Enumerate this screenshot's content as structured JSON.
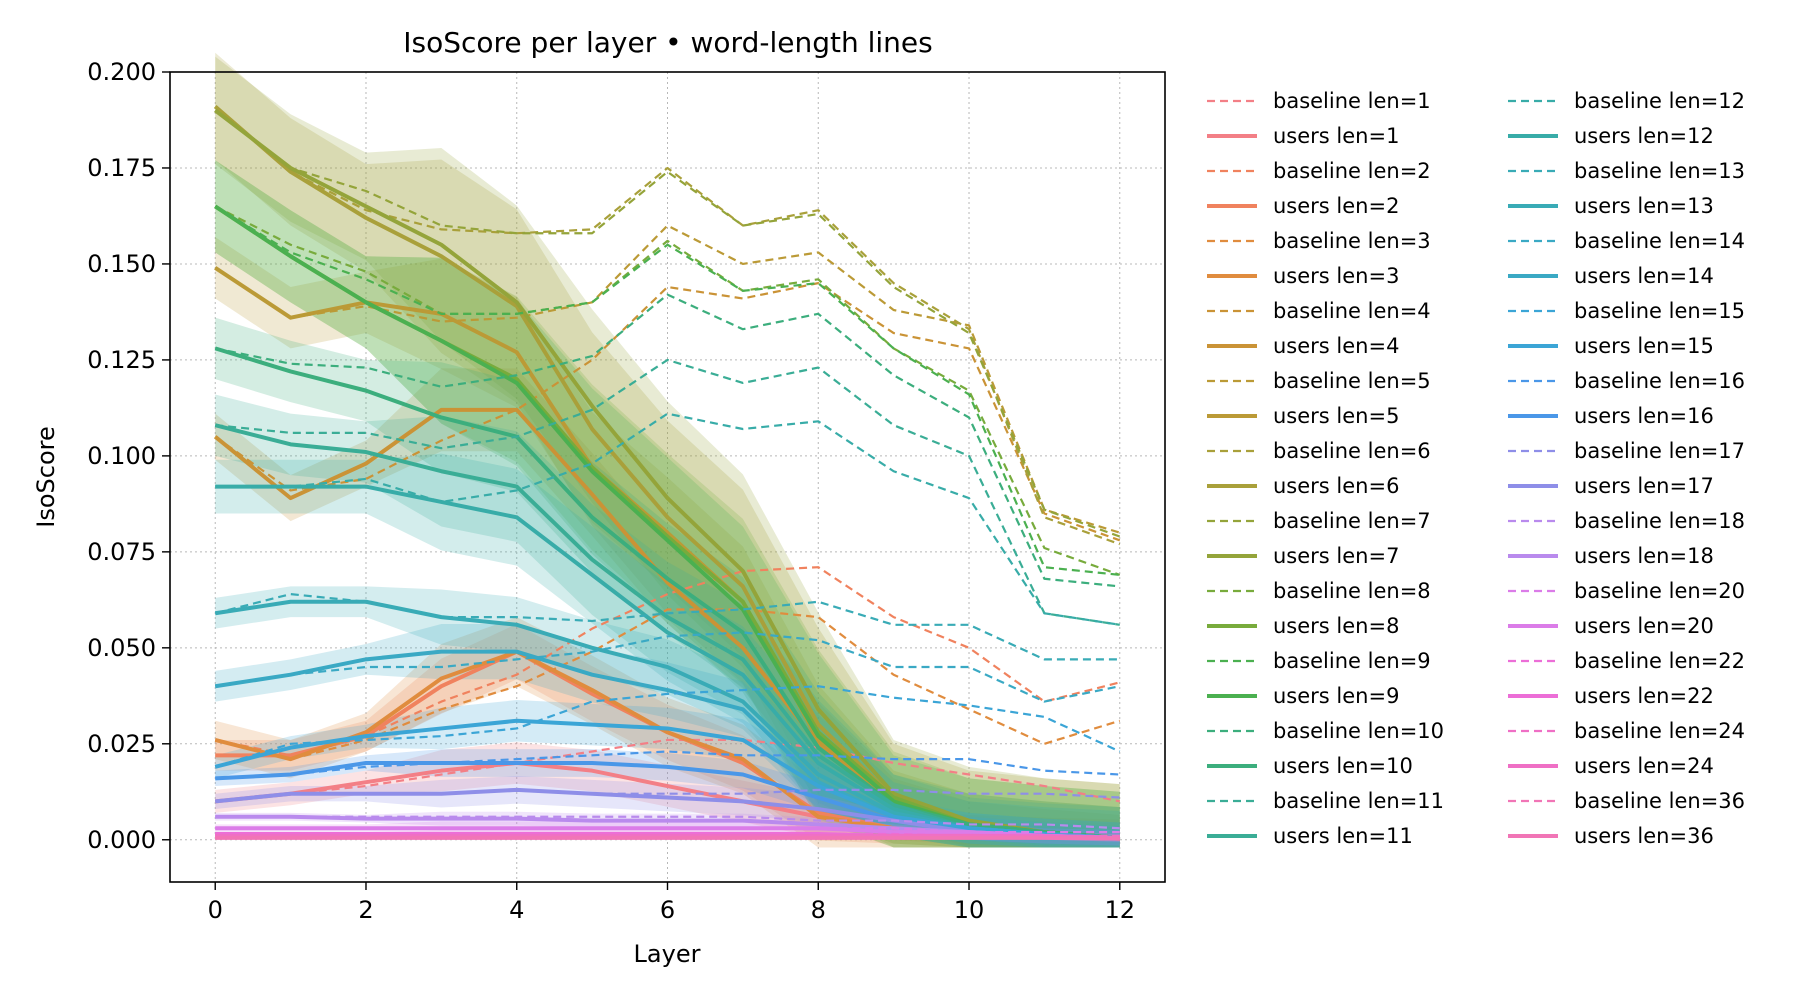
{
  "chart_data": {
    "type": "line",
    "title": "IsoScore per layer • word-length lines",
    "xlabel": "Layer",
    "ylabel": "IsoScore",
    "xlim": [
      -0.6,
      12.6
    ],
    "ylim": [
      -0.011,
      0.2
    ],
    "xticks": [
      0,
      2,
      4,
      6,
      8,
      10,
      12
    ],
    "xtick_labels": [
      "0",
      "2",
      "4",
      "6",
      "8",
      "10",
      "12"
    ],
    "yticks": [
      0.0,
      0.025,
      0.05,
      0.075,
      0.1,
      0.125,
      0.15,
      0.175,
      0.2
    ],
    "ytick_labels": [
      "0.000",
      "0.025",
      "0.050",
      "0.075",
      "0.100",
      "0.125",
      "0.150",
      "0.175",
      "0.200"
    ],
    "grid": true,
    "legend_position": "outside-right",
    "x": [
      0,
      1,
      2,
      3,
      4,
      5,
      6,
      7,
      8,
      9,
      10,
      11,
      12
    ],
    "series": [
      {
        "name": "baseline len=1",
        "style": "dashed",
        "color": "#f37f86",
        "values": [
          0.01,
          0.012,
          0.014,
          0.017,
          0.02,
          0.023,
          0.026,
          0.026,
          0.024,
          0.02,
          0.017,
          0.014,
          0.01
        ]
      },
      {
        "name": "users len=1",
        "style": "solid",
        "color": "#f37f86",
        "band": 0.003,
        "values": [
          0.01,
          0.012,
          0.015,
          0.018,
          0.02,
          0.018,
          0.014,
          0.01,
          0.006,
          0.003,
          0.0015,
          0.0008,
          0.0003
        ]
      },
      {
        "name": "baseline len=2",
        "style": "dashed",
        "color": "#f0825e",
        "values": [
          0.026,
          0.022,
          0.027,
          0.036,
          0.043,
          0.055,
          0.064,
          0.07,
          0.071,
          0.058,
          0.05,
          0.036,
          0.041
        ]
      },
      {
        "name": "users len=2",
        "style": "solid",
        "color": "#f0825e",
        "band": 0.004,
        "values": [
          0.022,
          0.022,
          0.027,
          0.04,
          0.049,
          0.038,
          0.028,
          0.02,
          0.007,
          0.003,
          0.0015,
          0.0008,
          0.0003
        ]
      },
      {
        "name": "baseline len=3",
        "style": "dashed",
        "color": "#e08c3e",
        "values": [
          0.026,
          0.021,
          0.026,
          0.034,
          0.04,
          0.049,
          0.06,
          0.06,
          0.058,
          0.043,
          0.034,
          0.025,
          0.031
        ]
      },
      {
        "name": "users len=3",
        "style": "solid",
        "color": "#e08c3e",
        "band": 0.005,
        "values": [
          0.026,
          0.021,
          0.028,
          0.042,
          0.049,
          0.039,
          0.028,
          0.021,
          0.006,
          0.003,
          0.0015,
          0.0008,
          0.0003
        ]
      },
      {
        "name": "baseline len=4",
        "style": "dashed",
        "color": "#ca9336",
        "values": [
          0.105,
          0.091,
          0.094,
          0.104,
          0.112,
          0.125,
          0.144,
          0.141,
          0.145,
          0.132,
          0.128,
          0.085,
          0.078
        ]
      },
      {
        "name": "users len=4",
        "style": "solid",
        "color": "#ca9336",
        "band": 0.006,
        "values": [
          0.105,
          0.089,
          0.098,
          0.112,
          0.112,
          0.09,
          0.067,
          0.05,
          0.025,
          0.01,
          0.004,
          0.002,
          0.0005
        ]
      },
      {
        "name": "baseline len=5",
        "style": "dashed",
        "color": "#bb9a36",
        "values": [
          0.149,
          0.136,
          0.139,
          0.135,
          0.136,
          0.14,
          0.16,
          0.15,
          0.153,
          0.138,
          0.134,
          0.086,
          0.08
        ]
      },
      {
        "name": "users len=5",
        "style": "solid",
        "color": "#bb9a36",
        "band": 0.008,
        "values": [
          0.149,
          0.136,
          0.14,
          0.137,
          0.127,
          0.097,
          0.08,
          0.062,
          0.026,
          0.01,
          0.004,
          0.002,
          0.0005
        ]
      },
      {
        "name": "baseline len=6",
        "style": "dashed",
        "color": "#a9a03a",
        "values": [
          0.191,
          0.174,
          0.164,
          0.159,
          0.158,
          0.159,
          0.175,
          0.16,
          0.164,
          0.145,
          0.133,
          0.084,
          0.077
        ]
      },
      {
        "name": "users len=6",
        "style": "solid",
        "color": "#a9a03a",
        "band": 0.014,
        "values": [
          0.191,
          0.174,
          0.162,
          0.152,
          0.139,
          0.107,
          0.084,
          0.066,
          0.03,
          0.011,
          0.004,
          0.002,
          0.0005
        ]
      },
      {
        "name": "baseline len=7",
        "style": "dashed",
        "color": "#94a43a",
        "values": [
          0.19,
          0.175,
          0.169,
          0.16,
          0.158,
          0.158,
          0.174,
          0.16,
          0.163,
          0.144,
          0.132,
          0.086,
          0.079
        ]
      },
      {
        "name": "users len=7",
        "style": "solid",
        "color": "#94a43a",
        "band": 0.014,
        "values": [
          0.19,
          0.175,
          0.165,
          0.155,
          0.14,
          0.113,
          0.089,
          0.07,
          0.034,
          0.012,
          0.005,
          0.002,
          0.0005
        ]
      },
      {
        "name": "baseline len=8",
        "style": "dashed",
        "color": "#78ab3c",
        "values": [
          0.165,
          0.155,
          0.148,
          0.137,
          0.137,
          0.14,
          0.156,
          0.143,
          0.146,
          0.128,
          0.117,
          0.076,
          0.069
        ]
      },
      {
        "name": "users len=8",
        "style": "solid",
        "color": "#78ab3c",
        "band": 0.012,
        "values": [
          0.165,
          0.152,
          0.14,
          0.13,
          0.12,
          0.097,
          0.079,
          0.062,
          0.028,
          0.011,
          0.004,
          0.002,
          0.0005
        ]
      },
      {
        "name": "baseline len=9",
        "style": "dashed",
        "color": "#4bb050",
        "values": [
          0.165,
          0.153,
          0.146,
          0.137,
          0.137,
          0.14,
          0.155,
          0.143,
          0.145,
          0.128,
          0.116,
          0.071,
          0.069
        ]
      },
      {
        "name": "users len=9",
        "style": "solid",
        "color": "#4bb050",
        "band": 0.012,
        "values": [
          0.165,
          0.152,
          0.14,
          0.13,
          0.119,
          0.096,
          0.078,
          0.06,
          0.027,
          0.01,
          0.004,
          0.002,
          0.0005
        ]
      },
      {
        "name": "baseline len=10",
        "style": "dashed",
        "color": "#3cae7d",
        "values": [
          0.128,
          0.124,
          0.123,
          0.118,
          0.121,
          0.126,
          0.142,
          0.133,
          0.137,
          0.121,
          0.11,
          0.068,
          0.066
        ]
      },
      {
        "name": "users len=10",
        "style": "solid",
        "color": "#3cae7d",
        "band": 0.008,
        "values": [
          0.128,
          0.122,
          0.117,
          0.11,
          0.105,
          0.084,
          0.068,
          0.054,
          0.024,
          0.009,
          0.004,
          0.002,
          0.0005
        ]
      },
      {
        "name": "baseline len=11",
        "style": "dashed",
        "color": "#3aad96",
        "values": [
          0.108,
          0.106,
          0.106,
          0.102,
          0.105,
          0.112,
          0.125,
          0.119,
          0.123,
          0.108,
          0.1,
          0.059,
          0.056
        ]
      },
      {
        "name": "users len=11",
        "style": "solid",
        "color": "#3aad96",
        "band": 0.008,
        "values": [
          0.108,
          0.103,
          0.101,
          0.096,
          0.092,
          0.073,
          0.058,
          0.047,
          0.022,
          0.009,
          0.003,
          0.0015,
          0.0005
        ]
      },
      {
        "name": "baseline len=12",
        "style": "dashed",
        "color": "#38aca8",
        "values": [
          0.092,
          0.092,
          0.094,
          0.088,
          0.091,
          0.098,
          0.111,
          0.107,
          0.109,
          0.096,
          0.089,
          0.059,
          0.056
        ]
      },
      {
        "name": "users len=12",
        "style": "solid",
        "color": "#38aca8",
        "band": 0.007,
        "values": [
          0.092,
          0.092,
          0.092,
          0.088,
          0.084,
          0.069,
          0.054,
          0.043,
          0.02,
          0.008,
          0.003,
          0.0015,
          0.0005
        ]
      },
      {
        "name": "baseline len=13",
        "style": "dashed",
        "color": "#39abb6",
        "values": [
          0.059,
          0.064,
          0.062,
          0.058,
          0.058,
          0.057,
          0.059,
          0.06,
          0.062,
          0.056,
          0.056,
          0.047,
          0.047
        ]
      },
      {
        "name": "users len=13",
        "style": "solid",
        "color": "#39abb6",
        "band": 0.004,
        "values": [
          0.059,
          0.062,
          0.062,
          0.058,
          0.056,
          0.05,
          0.045,
          0.036,
          0.017,
          0.007,
          0.003,
          0.0015,
          0.0005
        ]
      },
      {
        "name": "baseline len=14",
        "style": "dashed",
        "color": "#3aa9c4",
        "values": [
          0.04,
          0.043,
          0.045,
          0.045,
          0.047,
          0.049,
          0.053,
          0.054,
          0.052,
          0.045,
          0.045,
          0.036,
          0.04
        ]
      },
      {
        "name": "users len=14",
        "style": "solid",
        "color": "#3aa9c4",
        "band": 0.004,
        "values": [
          0.04,
          0.043,
          0.047,
          0.049,
          0.049,
          0.043,
          0.039,
          0.034,
          0.015,
          0.006,
          0.003,
          0.0015,
          0.0005
        ]
      },
      {
        "name": "baseline len=15",
        "style": "dashed",
        "color": "#3ba5d6",
        "values": [
          0.019,
          0.025,
          0.026,
          0.027,
          0.029,
          0.036,
          0.038,
          0.039,
          0.04,
          0.037,
          0.035,
          0.032,
          0.023
        ]
      },
      {
        "name": "users len=15",
        "style": "solid",
        "color": "#3ba5d6",
        "band": 0.003,
        "values": [
          0.019,
          0.024,
          0.027,
          0.029,
          0.031,
          0.03,
          0.029,
          0.026,
          0.014,
          0.006,
          0.003,
          0.0015,
          0.0005
        ]
      },
      {
        "name": "baseline len=16",
        "style": "dashed",
        "color": "#4a97e8",
        "values": [
          0.016,
          0.017,
          0.019,
          0.02,
          0.021,
          0.022,
          0.023,
          0.022,
          0.022,
          0.021,
          0.021,
          0.018,
          0.017
        ]
      },
      {
        "name": "users len=16",
        "style": "solid",
        "color": "#4a97e8",
        "band": 0.002,
        "values": [
          0.016,
          0.017,
          0.02,
          0.02,
          0.02,
          0.02,
          0.019,
          0.017,
          0.011,
          0.005,
          0.002,
          0.001,
          0.0005
        ]
      },
      {
        "name": "baseline len=17",
        "style": "dashed",
        "color": "#8e8ee8",
        "values": [
          0.01,
          0.012,
          0.012,
          0.012,
          0.013,
          0.012,
          0.012,
          0.012,
          0.013,
          0.013,
          0.012,
          0.012,
          0.011
        ]
      },
      {
        "name": "users len=17",
        "style": "solid",
        "color": "#8e8ee8",
        "band": 0.002,
        "values": [
          0.01,
          0.012,
          0.012,
          0.012,
          0.013,
          0.012,
          0.011,
          0.01,
          0.008,
          0.005,
          0.002,
          0.001,
          0.0005
        ]
      },
      {
        "name": "baseline len=18",
        "style": "dashed",
        "color": "#b98aed",
        "values": [
          0.006,
          0.006,
          0.006,
          0.006,
          0.006,
          0.006,
          0.006,
          0.006,
          0.005,
          0.005,
          0.004,
          0.004,
          0.003
        ]
      },
      {
        "name": "users len=18",
        "style": "solid",
        "color": "#b98aed",
        "band": 0.001,
        "values": [
          0.006,
          0.006,
          0.0055,
          0.0055,
          0.0055,
          0.005,
          0.005,
          0.005,
          0.004,
          0.003,
          0.002,
          0.001,
          0.0005
        ]
      },
      {
        "name": "baseline len=20",
        "style": "dashed",
        "color": "#db7ce8",
        "values": [
          0.003,
          0.003,
          0.003,
          0.003,
          0.003,
          0.003,
          0.003,
          0.003,
          0.003,
          0.003,
          0.002,
          0.002,
          0.002
        ]
      },
      {
        "name": "users len=20",
        "style": "solid",
        "color": "#db7ce8",
        "band": 0.001,
        "values": [
          0.003,
          0.003,
          0.003,
          0.003,
          0.003,
          0.003,
          0.003,
          0.003,
          0.003,
          0.002,
          0.002,
          0.001,
          0.0005
        ]
      },
      {
        "name": "baseline len=22",
        "style": "dashed",
        "color": "#ec6ed7",
        "values": [
          0.0015,
          0.0015,
          0.0015,
          0.0015,
          0.0015,
          0.0015,
          0.0015,
          0.0015,
          0.0015,
          0.0015,
          0.001,
          0.001,
          0.001
        ]
      },
      {
        "name": "users len=22",
        "style": "solid",
        "color": "#ec6ed7",
        "band": 0.0005,
        "values": [
          0.0015,
          0.0015,
          0.0015,
          0.0015,
          0.0015,
          0.0015,
          0.0015,
          0.0015,
          0.0015,
          0.001,
          0.001,
          0.001,
          0.0005
        ]
      },
      {
        "name": "baseline len=24",
        "style": "dashed",
        "color": "#ef6fc5",
        "values": [
          0.001,
          0.001,
          0.001,
          0.001,
          0.001,
          0.001,
          0.001,
          0.001,
          0.001,
          0.001,
          0.001,
          0.001,
          0.001
        ]
      },
      {
        "name": "users len=24",
        "style": "solid",
        "color": "#ef6fc5",
        "band": 0.0005,
        "values": [
          0.001,
          0.001,
          0.001,
          0.001,
          0.001,
          0.001,
          0.001,
          0.001,
          0.001,
          0.001,
          0.001,
          0.0008,
          0.0005
        ]
      },
      {
        "name": "baseline len=36",
        "style": "dashed",
        "color": "#f175b6",
        "values": [
          0.0005,
          0.0005,
          0.0005,
          0.0005,
          0.0005,
          0.0005,
          0.0005,
          0.0005,
          0.0005,
          0.0005,
          0.0005,
          0.0005,
          0.0005
        ]
      },
      {
        "name": "users len=36",
        "style": "solid",
        "color": "#f175b6",
        "band": 0.0003,
        "values": [
          0.0005,
          0.0005,
          0.0005,
          0.0005,
          0.0005,
          0.0005,
          0.0005,
          0.0005,
          0.0005,
          0.0005,
          0.0005,
          0.0005,
          0.0003
        ]
      }
    ]
  }
}
